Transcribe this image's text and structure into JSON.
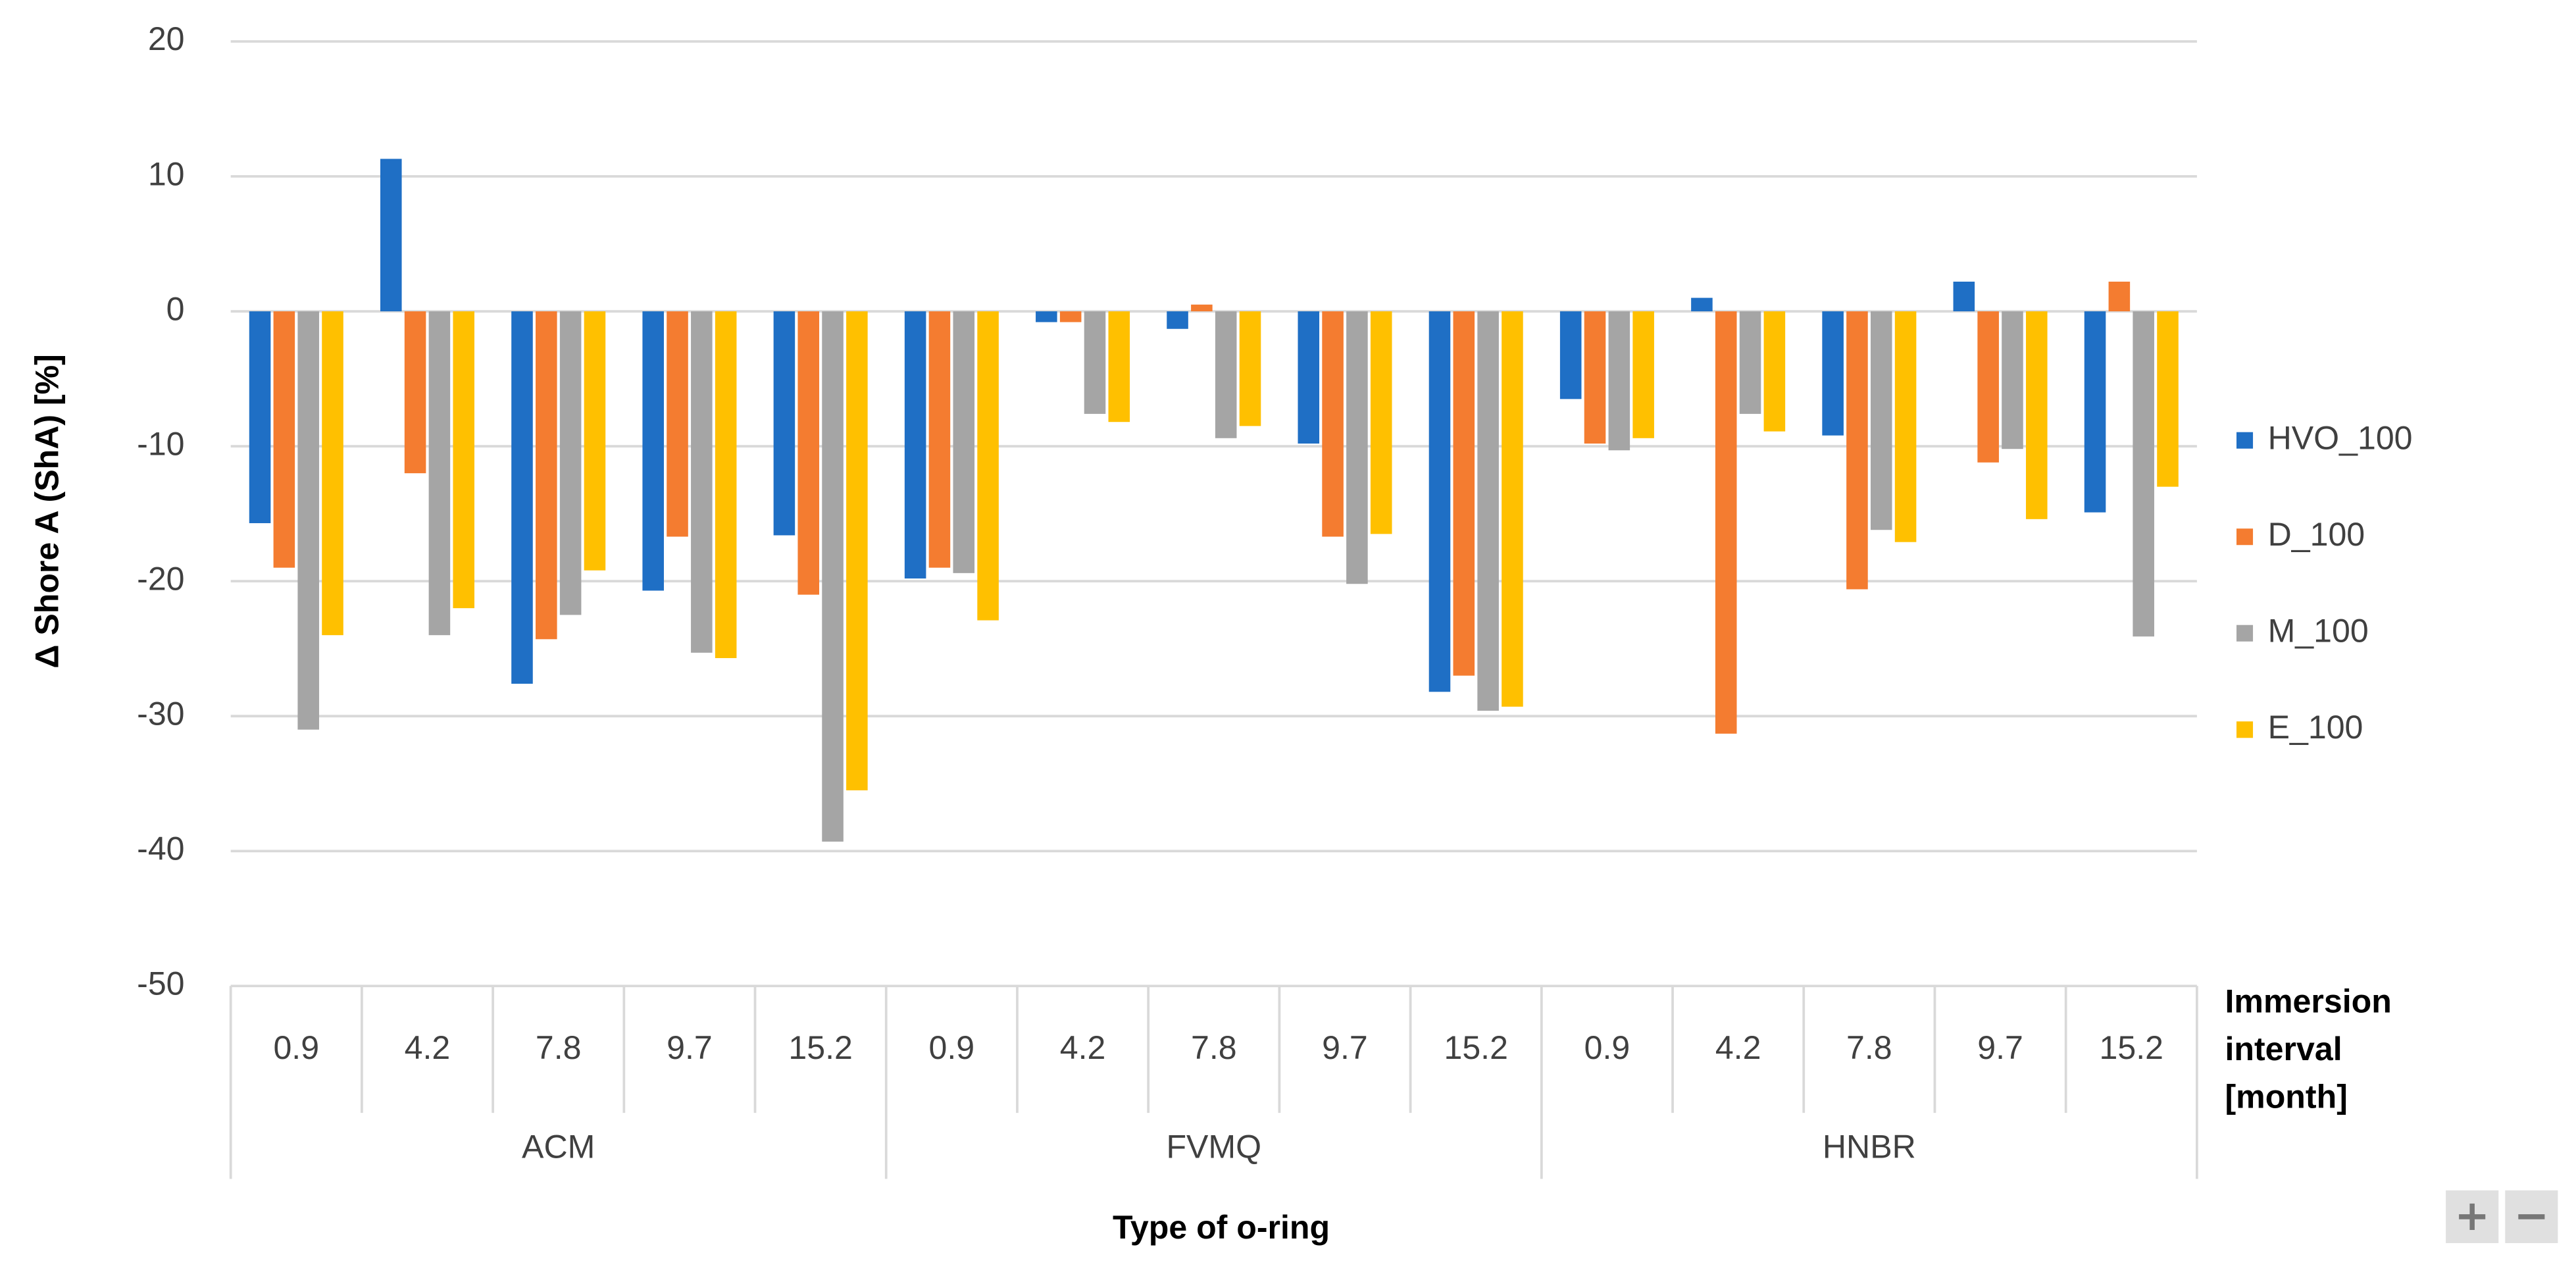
{
  "chart_data": {
    "type": "bar",
    "y_label": "Δ Shore A (ShA) [%]",
    "x_label": "Type of o-ring",
    "category_axis_label": "Immersion interval [month]",
    "groups": [
      "ACM",
      "FVMQ",
      "HNBR"
    ],
    "categories": [
      "0.9",
      "4.2",
      "7.8",
      "9.7",
      "15.2",
      "0.9",
      "4.2",
      "7.8",
      "9.7",
      "15.2",
      "0.9",
      "4.2",
      "7.8",
      "9.7",
      "15.2"
    ],
    "series": [
      {
        "name": "HVO_100",
        "color": "#1f6fc5",
        "values": [
          -15.7,
          11.3,
          -27.6,
          -20.7,
          -16.6,
          -19.8,
          -0.8,
          -1.3,
          -9.8,
          -28.2,
          -6.5,
          1,
          -9.2,
          2.2,
          -14.9
        ]
      },
      {
        "name": "D_100",
        "color": "#f47c30",
        "values": [
          -19,
          -12,
          -24.3,
          -16.7,
          -21,
          -19,
          -0.8,
          0.5,
          -16.7,
          -27,
          -9.8,
          -31.3,
          -20.6,
          -11.2,
          2.2
        ]
      },
      {
        "name": "M_100",
        "color": "#a5a5a5",
        "values": [
          -31,
          -24,
          -22.5,
          -25.3,
          -39.3,
          -19.4,
          -7.6,
          -9.4,
          -20.2,
          -29.6,
          -10.3,
          -7.6,
          -16.2,
          -10.2,
          -24.1
        ]
      },
      {
        "name": "E_100",
        "color": "#ffc000",
        "values": [
          -24,
          -22,
          -19.2,
          -25.7,
          -35.5,
          -22.9,
          -8.2,
          -8.5,
          -16.5,
          -29.3,
          -9.4,
          -8.9,
          -17.1,
          -15.4,
          -13
        ]
      }
    ],
    "ylim": [
      -50,
      20
    ],
    "yticks": [
      -50,
      -40,
      -30,
      -20,
      -10,
      0,
      10,
      20
    ],
    "grid": true,
    "legend": "right"
  }
}
